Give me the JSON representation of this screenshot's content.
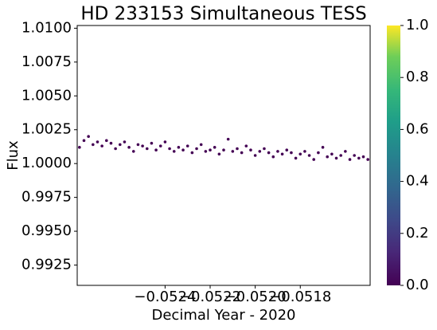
{
  "chart_data": {
    "type": "scatter",
    "title": "HD 233153 Simultaneous TESS",
    "x_label": "Decimal Year - 2020",
    "y_label": "Flux",
    "color": "#440154",
    "x": [
      -0.05278,
      -0.05276,
      -0.05274,
      -0.05272,
      -0.0527,
      -0.05268,
      -0.05266,
      -0.05264,
      -0.05262,
      -0.0526,
      -0.05258,
      -0.05256,
      -0.05254,
      -0.05252,
      -0.0525,
      -0.05248,
      -0.05246,
      -0.05244,
      -0.05242,
      -0.0524,
      -0.05238,
      -0.05236,
      -0.05234,
      -0.05232,
      -0.0523,
      -0.05228,
      -0.05226,
      -0.05224,
      -0.05222,
      -0.0522,
      -0.05218,
      -0.05216,
      -0.05214,
      -0.05212,
      -0.0521,
      -0.05208,
      -0.05206,
      -0.05204,
      -0.05202,
      -0.052,
      -0.05198,
      -0.05196,
      -0.05194,
      -0.05192,
      -0.0519,
      -0.05188,
      -0.05186,
      -0.05184,
      -0.05182,
      -0.0518,
      -0.05178,
      -0.05176,
      -0.05174,
      -0.05172,
      -0.0517,
      -0.05168,
      -0.05166,
      -0.05164,
      -0.05162,
      -0.0516,
      -0.05158,
      -0.05156,
      -0.05154,
      -0.05152,
      -0.0515
    ],
    "values": [
      1.0012,
      1.0017,
      1.002,
      1.0014,
      1.0016,
      1.0013,
      1.0017,
      1.0015,
      1.0011,
      1.0014,
      1.0016,
      1.0012,
      1.0009,
      1.0014,
      1.0013,
      1.0011,
      1.0015,
      1.001,
      1.0013,
      1.0016,
      1.0011,
      1.0009,
      1.0012,
      1.001,
      1.0013,
      1.0008,
      1.0011,
      1.0014,
      1.0009,
      1.001,
      1.0012,
      1.0007,
      1.001,
      1.0018,
      1.0009,
      1.0011,
      1.0008,
      1.0013,
      1.001,
      1.0006,
      1.0009,
      1.0011,
      1.0008,
      1.0005,
      1.0009,
      1.0007,
      1.001,
      1.0008,
      1.0004,
      1.0007,
      1.0009,
      1.0006,
      1.0003,
      1.0008,
      1.0012,
      1.0005,
      1.0007,
      1.0004,
      1.0006,
      1.0009,
      1.0003,
      1.0006,
      1.0004,
      1.0005,
      1.0003
    ],
    "xlim": [
      -0.05279,
      -0.05149
    ],
    "ylim": [
      0.991,
      1.0102
    ],
    "xticks": [
      {
        "value": -0.0524,
        "label": "−0.0524"
      },
      {
        "value": -0.0522,
        "label": "−0.0522"
      },
      {
        "value": -0.052,
        "label": "−0.0520"
      },
      {
        "value": -0.0518,
        "label": "−0.0518"
      }
    ],
    "yticks": [
      {
        "value": 0.9925,
        "label": "0.9925"
      },
      {
        "value": 0.995,
        "label": "0.9950"
      },
      {
        "value": 0.9975,
        "label": "0.9975"
      },
      {
        "value": 1,
        "label": "1.0000"
      },
      {
        "value": 1.0025,
        "label": "1.0025"
      },
      {
        "value": 1.005,
        "label": "1.0050"
      },
      {
        "value": 1.0075,
        "label": "1.0075"
      },
      {
        "value": 1.01,
        "label": "1.0100"
      }
    ],
    "colorbar_lim": [
      0,
      1
    ],
    "colorbar_ticks": [
      {
        "value": 0,
        "label": "0.0"
      },
      {
        "value": 0.2,
        "label": "0.2"
      },
      {
        "value": 0.4,
        "label": "0.4"
      },
      {
        "value": 0.6,
        "label": "0.6"
      },
      {
        "value": 0.8,
        "label": "0.8"
      },
      {
        "value": 1,
        "label": "1.0"
      }
    ]
  }
}
